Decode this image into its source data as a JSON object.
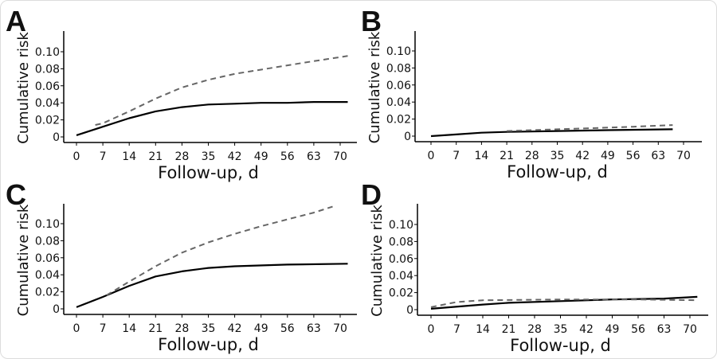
{
  "chart_data": [
    {
      "panel": "A",
      "type": "line",
      "xlabel": "Follow-up, d",
      "ylabel": "Cumulative risk",
      "xticks": [
        "0",
        "7",
        "14",
        "21",
        "28",
        "35",
        "42",
        "49",
        "56",
        "63",
        "70"
      ],
      "yticks": [
        "0",
        "0.02",
        "0.04",
        "0.06",
        "0.08",
        "0.10"
      ],
      "xlim": [
        0,
        72
      ],
      "ylim": [
        0,
        0.12
      ],
      "grid": false,
      "series": [
        {
          "style": "solid",
          "color": "#000000",
          "x": [
            0,
            7,
            14,
            21,
            28,
            35,
            42,
            49,
            56,
            63,
            72
          ],
          "y": [
            0.002,
            0.012,
            0.022,
            0.03,
            0.035,
            0.038,
            0.039,
            0.04,
            0.04,
            0.041,
            0.041
          ]
        },
        {
          "style": "dashed",
          "color": "#666666",
          "x": [
            5,
            7,
            14,
            21,
            28,
            35,
            42,
            49,
            56,
            63,
            72
          ],
          "y": [
            0.014,
            0.016,
            0.03,
            0.045,
            0.058,
            0.067,
            0.074,
            0.079,
            0.084,
            0.089,
            0.095
          ]
        }
      ]
    },
    {
      "panel": "B",
      "type": "line",
      "xlabel": "Follow-up, d",
      "ylabel": "Cumulative risk",
      "xticks": [
        "0",
        "7",
        "14",
        "21",
        "28",
        "35",
        "42",
        "49",
        "56",
        "63",
        "70"
      ],
      "yticks": [
        "0",
        "0.02",
        "0.04",
        "0.06",
        "0.08",
        "0.10"
      ],
      "xlim": [
        0,
        72
      ],
      "ylim": [
        0,
        0.12
      ],
      "grid": false,
      "series": [
        {
          "style": "solid",
          "color": "#000000",
          "x": [
            0,
            7,
            14,
            21,
            35,
            49,
            67
          ],
          "y": [
            0.0,
            0.002,
            0.004,
            0.005,
            0.006,
            0.007,
            0.008
          ]
        },
        {
          "style": "dashed",
          "color": "#666666",
          "x": [
            21,
            28,
            35,
            42,
            49,
            56,
            67
          ],
          "y": [
            0.006,
            0.007,
            0.008,
            0.009,
            0.01,
            0.011,
            0.013
          ]
        }
      ]
    },
    {
      "panel": "C",
      "type": "line",
      "xlabel": "Follow-up, d",
      "ylabel": "Cumulative risk",
      "xticks": [
        "0",
        "7",
        "14",
        "21",
        "28",
        "35",
        "42",
        "49",
        "56",
        "63",
        "70"
      ],
      "yticks": [
        "0",
        "0.02",
        "0.04",
        "0.06",
        "0.08",
        "0.10"
      ],
      "xlim": [
        0,
        72
      ],
      "ylim": [
        0,
        0.12
      ],
      "grid": false,
      "series": [
        {
          "style": "solid",
          "color": "#000000",
          "x": [
            0,
            7,
            14,
            21,
            28,
            35,
            42,
            56,
            72
          ],
          "y": [
            0.002,
            0.014,
            0.027,
            0.038,
            0.044,
            0.048,
            0.05,
            0.052,
            0.053
          ]
        },
        {
          "style": "dashed",
          "color": "#666666",
          "x": [
            8,
            14,
            21,
            28,
            35,
            42,
            49,
            56,
            63,
            68
          ],
          "y": [
            0.016,
            0.032,
            0.05,
            0.066,
            0.078,
            0.088,
            0.097,
            0.105,
            0.113,
            0.12
          ]
        }
      ]
    },
    {
      "panel": "D",
      "type": "line",
      "xlabel": "Follow-up, d",
      "ylabel": "Cumulative risk",
      "xticks": [
        "0",
        "7",
        "14",
        "21",
        "28",
        "35",
        "42",
        "49",
        "56",
        "63",
        "70"
      ],
      "yticks": [
        "0",
        "0.02",
        "0.04",
        "0.06",
        "0.08",
        "0.10"
      ],
      "xlim": [
        0,
        72
      ],
      "ylim": [
        0,
        0.12
      ],
      "grid": false,
      "series": [
        {
          "style": "solid",
          "color": "#000000",
          "x": [
            0,
            14,
            21,
            35,
            49,
            63,
            72
          ],
          "y": [
            0.001,
            0.006,
            0.008,
            0.01,
            0.012,
            0.013,
            0.015
          ]
        },
        {
          "style": "dashed",
          "color": "#666666",
          "x": [
            0,
            7,
            14,
            35,
            56,
            72
          ],
          "y": [
            0.003,
            0.009,
            0.011,
            0.012,
            0.012,
            0.011
          ]
        }
      ]
    }
  ]
}
